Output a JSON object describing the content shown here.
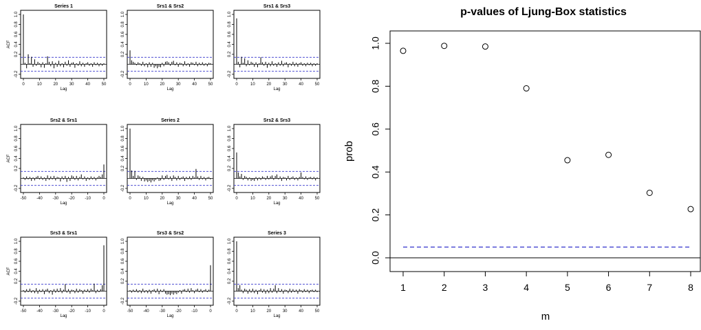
{
  "chart_data": [
    {
      "type": "bar",
      "panel": "acf-grid",
      "title": "Series 1",
      "ylabel": "ACF",
      "xlabel": "Lag",
      "ylim": [
        -0.2,
        1.0
      ],
      "xlim": [
        0,
        50
      ],
      "x_ticks": [
        "0",
        "10",
        "20",
        "30",
        "40",
        "50"
      ],
      "y_ticks": [
        "-0.2",
        "0.2",
        "0.4",
        "0.6",
        "0.8",
        "1.0"
      ],
      "ci": 0.14,
      "lags": [
        0,
        1,
        2,
        3,
        4,
        5,
        6,
        7,
        8,
        9,
        10,
        11,
        12,
        13,
        14,
        15,
        16,
        17,
        18,
        19,
        20,
        21,
        22,
        23,
        24,
        25,
        26,
        27,
        28,
        29,
        30,
        31,
        32,
        33,
        34,
        35,
        36,
        37,
        38,
        39,
        40,
        41,
        42,
        43,
        44,
        45,
        46,
        47,
        48,
        49,
        50
      ],
      "values": [
        1.0,
        0.03,
        -0.08,
        0.2,
        0.02,
        0.15,
        -0.05,
        0.1,
        -0.03,
        0.05,
        0.02,
        -0.06,
        0.04,
        -0.07,
        0.02,
        0.16,
        0.05,
        -0.04,
        0.06,
        -0.08,
        0.03,
        -0.05,
        0.07,
        -0.04,
        0.02,
        -0.06,
        0.05,
        -0.03,
        0.08,
        -0.05,
        0.03,
        0.04,
        -0.07,
        0.02,
        -0.03,
        0.06,
        -0.04,
        0.03,
        -0.05,
        0.02,
        0.04,
        -0.03,
        0.02,
        -0.05,
        0.04,
        -0.02,
        0.03,
        -0.04,
        0.02,
        -0.03,
        0.02
      ]
    },
    {
      "type": "bar",
      "panel": "acf-grid",
      "title": "Srs1 & Srs2",
      "xlabel": "Lag",
      "ylim": [
        -0.2,
        1.0
      ],
      "xlim": [
        0,
        50
      ],
      "x_ticks": [
        "0",
        "10",
        "20",
        "30",
        "40",
        "50"
      ],
      "y_ticks": [
        "-0.2",
        "0.2",
        "0.4",
        "0.6",
        "0.8",
        "1.0"
      ],
      "ci": 0.14,
      "lags": [
        0,
        1,
        2,
        3,
        4,
        5,
        6,
        7,
        8,
        9,
        10,
        11,
        12,
        13,
        14,
        15,
        16,
        17,
        18,
        19,
        20,
        21,
        22,
        23,
        24,
        25,
        26,
        27,
        28,
        29,
        30,
        31,
        32,
        33,
        34,
        35,
        36,
        37,
        38,
        39,
        40,
        41,
        42,
        43,
        44,
        45,
        46,
        47,
        48,
        49,
        50
      ],
      "values": [
        0.28,
        0.08,
        0.05,
        0.03,
        -0.02,
        0.04,
        0.02,
        -0.03,
        0.05,
        -0.04,
        0.02,
        -0.06,
        0.04,
        -0.05,
        0.03,
        -0.07,
        -0.04,
        -0.08,
        -0.05,
        -0.06,
        0.03,
        -0.04,
        0.05,
        0.06,
        0.04,
        -0.03,
        0.05,
        0.07,
        -0.02,
        0.04,
        -0.05,
        0.03,
        0.02,
        -0.04,
        0.06,
        -0.03,
        0.02,
        -0.05,
        0.04,
        0.03,
        -0.02,
        0.05,
        -0.04,
        0.03,
        -0.02,
        0.04,
        -0.03,
        0.02,
        -0.04,
        0.03,
        0.02
      ]
    },
    {
      "type": "bar",
      "panel": "acf-grid",
      "title": "Srs1 & Srs3",
      "xlabel": "Lag",
      "ylim": [
        -0.2,
        1.0
      ],
      "xlim": [
        0,
        50
      ],
      "x_ticks": [
        "0",
        "10",
        "20",
        "30",
        "40",
        "50"
      ],
      "y_ticks": [
        "-0.2",
        "0.2",
        "0.4",
        "0.6",
        "0.8",
        "1.0"
      ],
      "ci": 0.14,
      "lags": [
        0,
        1,
        2,
        3,
        4,
        5,
        6,
        7,
        8,
        9,
        10,
        11,
        12,
        13,
        14,
        15,
        16,
        17,
        18,
        19,
        20,
        21,
        22,
        23,
        24,
        25,
        26,
        27,
        28,
        29,
        30,
        31,
        32,
        33,
        34,
        35,
        36,
        37,
        38,
        39,
        40,
        41,
        42,
        43,
        44,
        45,
        46,
        47,
        48,
        49,
        50
      ],
      "values": [
        0.92,
        0.05,
        -0.06,
        0.15,
        0.03,
        0.12,
        -0.04,
        0.08,
        -0.02,
        0.05,
        0.03,
        -0.05,
        0.04,
        -0.06,
        0.02,
        0.14,
        0.04,
        -0.03,
        0.05,
        -0.07,
        0.03,
        -0.04,
        0.06,
        -0.03,
        0.02,
        -0.05,
        0.04,
        -0.03,
        0.07,
        -0.04,
        0.03,
        0.04,
        -0.06,
        0.02,
        -0.03,
        0.05,
        -0.04,
        0.03,
        -0.05,
        0.02,
        0.04,
        -0.03,
        0.02,
        -0.04,
        0.03,
        -0.02,
        0.03,
        -0.04,
        0.02,
        -0.03,
        0.02
      ]
    },
    {
      "type": "bar",
      "panel": "acf-grid",
      "title": "Srs2 & Srs1",
      "ylabel": "ACF",
      "xlabel": "Lag",
      "ylim": [
        -0.2,
        1.0
      ],
      "xlim": [
        -50,
        0
      ],
      "x_ticks": [
        "-50",
        "-40",
        "-30",
        "-20",
        "-10",
        "0"
      ],
      "y_ticks": [
        "-0.2",
        "0.2",
        "0.4",
        "0.6",
        "0.8",
        "1.0"
      ],
      "ci": 0.14,
      "lags": [
        -50,
        -49,
        -48,
        -47,
        -46,
        -45,
        -44,
        -43,
        -42,
        -41,
        -40,
        -39,
        -38,
        -37,
        -36,
        -35,
        -34,
        -33,
        -32,
        -31,
        -30,
        -29,
        -28,
        -27,
        -26,
        -25,
        -24,
        -23,
        -22,
        -21,
        -20,
        -19,
        -18,
        -17,
        -16,
        -15,
        -14,
        -13,
        -12,
        -11,
        -10,
        -9,
        -8,
        -7,
        -6,
        -5,
        -4,
        -3,
        -2,
        -1,
        0
      ],
      "values": [
        0.02,
        -0.03,
        0.04,
        -0.02,
        0.03,
        -0.05,
        0.02,
        -0.04,
        0.03,
        0.05,
        -0.02,
        0.04,
        -0.03,
        0.02,
        -0.05,
        0.06,
        -0.03,
        0.04,
        -0.02,
        0.05,
        -0.04,
        0.03,
        0.02,
        -0.06,
        0.04,
        -0.02,
        0.05,
        -0.07,
        0.03,
        -0.05,
        0.06,
        0.04,
        -0.03,
        0.05,
        -0.04,
        0.03,
        0.08,
        -0.02,
        0.04,
        -0.05,
        0.02,
        -0.03,
        0.04,
        -0.02,
        0.03,
        -0.04,
        0.02,
        0.05,
        0.03,
        0.08,
        0.28
      ]
    },
    {
      "type": "bar",
      "panel": "acf-grid",
      "title": "Series 2",
      "xlabel": "Lag",
      "ylim": [
        -0.2,
        1.0
      ],
      "xlim": [
        0,
        50
      ],
      "x_ticks": [
        "0",
        "10",
        "20",
        "30",
        "40",
        "50"
      ],
      "y_ticks": [
        "-0.2",
        "0.2",
        "0.4",
        "0.6",
        "0.8",
        "1.0"
      ],
      "ci": 0.14,
      "lags": [
        0,
        1,
        2,
        3,
        4,
        5,
        6,
        7,
        8,
        9,
        10,
        11,
        12,
        13,
        14,
        15,
        16,
        17,
        18,
        19,
        20,
        21,
        22,
        23,
        24,
        25,
        26,
        27,
        28,
        29,
        30,
        31,
        32,
        33,
        34,
        35,
        36,
        37,
        38,
        39,
        40,
        41,
        42,
        43,
        44,
        45,
        46,
        47,
        48,
        49,
        50
      ],
      "values": [
        1.0,
        0.16,
        0.05,
        0.15,
        -0.03,
        0.06,
        0.04,
        -0.05,
        0.03,
        -0.06,
        -0.04,
        -0.07,
        -0.05,
        -0.08,
        -0.04,
        -0.06,
        -0.03,
        0.02,
        -0.05,
        -0.04,
        0.06,
        -0.03,
        0.05,
        0.07,
        -0.02,
        0.04,
        -0.05,
        0.06,
        0.03,
        -0.04,
        0.05,
        -0.03,
        0.02,
        0.04,
        -0.05,
        0.03,
        -0.02,
        0.04,
        -0.03,
        0.05,
        0.02,
        0.19,
        0.04,
        -0.03,
        0.05,
        -0.02,
        0.03,
        -0.04,
        0.02,
        0.03,
        -0.02
      ]
    },
    {
      "type": "bar",
      "panel": "acf-grid",
      "title": "Srs2 & Srs3",
      "xlabel": "Lag",
      "ylim": [
        -0.2,
        1.0
      ],
      "xlim": [
        0,
        50
      ],
      "x_ticks": [
        "0",
        "10",
        "20",
        "30",
        "40",
        "50"
      ],
      "y_ticks": [
        "-0.2",
        "0.2",
        "0.4",
        "0.6",
        "0.8",
        "1.0"
      ],
      "ci": 0.14,
      "lags": [
        0,
        1,
        2,
        3,
        4,
        5,
        6,
        7,
        8,
        9,
        10,
        11,
        12,
        13,
        14,
        15,
        16,
        17,
        18,
        19,
        20,
        21,
        22,
        23,
        24,
        25,
        26,
        27,
        28,
        29,
        30,
        31,
        32,
        33,
        34,
        35,
        36,
        37,
        38,
        39,
        40,
        41,
        42,
        43,
        44,
        45,
        46,
        47,
        48,
        49,
        50
      ],
      "values": [
        0.52,
        0.12,
        0.04,
        0.09,
        -0.03,
        0.05,
        0.03,
        -0.04,
        0.02,
        -0.05,
        -0.03,
        -0.05,
        0.03,
        -0.04,
        0.02,
        -0.03,
        0.04,
        0.02,
        -0.03,
        0.05,
        -0.02,
        0.04,
        0.06,
        -0.03,
        0.05,
        0.08,
        -0.02,
        0.04,
        -0.05,
        0.03,
        0.02,
        -0.04,
        0.05,
        -0.03,
        0.02,
        0.04,
        -0.03,
        0.02,
        -0.04,
        0.03,
        0.12,
        0.03,
        -0.02,
        0.04,
        -0.03,
        0.02,
        0.03,
        -0.02,
        0.03,
        -0.04,
        0.02
      ]
    },
    {
      "type": "bar",
      "panel": "acf-grid",
      "title": "Srs3 & Srs1",
      "ylabel": "ACF",
      "xlabel": "Lag",
      "ylim": [
        -0.2,
        1.0
      ],
      "xlim": [
        -50,
        0
      ],
      "x_ticks": [
        "-50",
        "-40",
        "-30",
        "-20",
        "-10",
        "0"
      ],
      "y_ticks": [
        "-0.2",
        "0.2",
        "0.4",
        "0.6",
        "0.8",
        "1.0"
      ],
      "ci": 0.14,
      "lags": [
        -50,
        -49,
        -48,
        -47,
        -46,
        -45,
        -44,
        -43,
        -42,
        -41,
        -40,
        -39,
        -38,
        -37,
        -36,
        -35,
        -34,
        -33,
        -32,
        -31,
        -30,
        -29,
        -28,
        -27,
        -26,
        -25,
        -24,
        -23,
        -22,
        -21,
        -20,
        -19,
        -18,
        -17,
        -16,
        -15,
        -14,
        -13,
        -12,
        -11,
        -10,
        -9,
        -8,
        -7,
        -6,
        -5,
        -4,
        -3,
        -2,
        -1,
        0
      ],
      "values": [
        0.02,
        -0.03,
        0.04,
        -0.02,
        0.05,
        -0.03,
        0.02,
        -0.04,
        0.06,
        -0.05,
        0.03,
        -0.02,
        0.04,
        -0.06,
        0.03,
        0.05,
        -0.04,
        0.02,
        -0.07,
        0.04,
        -0.03,
        0.05,
        -0.02,
        0.06,
        -0.04,
        0.03,
        0.14,
        -0.03,
        0.04,
        -0.05,
        0.03,
        0.02,
        -0.04,
        0.05,
        -0.03,
        0.04,
        0.02,
        -0.05,
        0.03,
        -0.02,
        0.04,
        -0.03,
        0.05,
        0.02,
        0.15,
        -0.04,
        0.03,
        -0.02,
        0.04,
        0.12,
        0.92
      ]
    },
    {
      "type": "bar",
      "panel": "acf-grid",
      "title": "Srs3 & Srs2",
      "xlabel": "Lag",
      "ylim": [
        -0.2,
        1.0
      ],
      "xlim": [
        -50,
        0
      ],
      "x_ticks": [
        "-50",
        "-40",
        "-30",
        "-20",
        "-10",
        "0"
      ],
      "y_ticks": [
        "-0.2",
        "0.2",
        "0.4",
        "0.6",
        "0.8",
        "1.0"
      ],
      "ci": 0.14,
      "lags": [
        -50,
        -49,
        -48,
        -47,
        -46,
        -45,
        -44,
        -43,
        -42,
        -41,
        -40,
        -39,
        -38,
        -37,
        -36,
        -35,
        -34,
        -33,
        -32,
        -31,
        -30,
        -29,
        -28,
        -27,
        -26,
        -25,
        -24,
        -23,
        -22,
        -21,
        -20,
        -19,
        -18,
        -17,
        -16,
        -15,
        -14,
        -13,
        -12,
        -11,
        -10,
        -9,
        -8,
        -7,
        -6,
        -5,
        -4,
        -3,
        -2,
        -1,
        0
      ],
      "values": [
        0.02,
        -0.03,
        0.03,
        -0.02,
        0.04,
        -0.03,
        0.02,
        -0.04,
        0.05,
        -0.03,
        0.02,
        -0.04,
        0.03,
        -0.05,
        0.02,
        0.04,
        -0.03,
        0.05,
        -0.06,
        0.03,
        -0.02,
        0.04,
        -0.05,
        -0.07,
        -0.06,
        -0.08,
        -0.05,
        -0.07,
        -0.04,
        -0.06,
        -0.03,
        0.02,
        -0.05,
        0.03,
        0.04,
        -0.02,
        0.05,
        -0.03,
        0.06,
        0.02,
        -0.04,
        0.03,
        0.05,
        -0.02,
        0.04,
        -0.03,
        0.02,
        0.04,
        -0.02,
        0.03,
        0.52
      ]
    },
    {
      "type": "bar",
      "panel": "acf-grid",
      "title": "Series 3",
      "xlabel": "Lag",
      "ylim": [
        -0.2,
        1.0
      ],
      "xlim": [
        0,
        50
      ],
      "x_ticks": [
        "0",
        "10",
        "20",
        "30",
        "40",
        "50"
      ],
      "y_ticks": [
        "-0.2",
        "0.2",
        "0.4",
        "0.6",
        "0.8",
        "1.0"
      ],
      "ci": 0.14,
      "lags": [
        0,
        1,
        2,
        3,
        4,
        5,
        6,
        7,
        8,
        9,
        10,
        11,
        12,
        13,
        14,
        15,
        16,
        17,
        18,
        19,
        20,
        21,
        22,
        23,
        24,
        25,
        26,
        27,
        28,
        29,
        30,
        31,
        32,
        33,
        34,
        35,
        36,
        37,
        38,
        39,
        40,
        41,
        42,
        43,
        44,
        45,
        46,
        47,
        48,
        49,
        50
      ],
      "values": [
        1.0,
        0.06,
        0.12,
        0.03,
        -0.04,
        0.05,
        0.03,
        -0.05,
        0.04,
        -0.03,
        0.05,
        -0.04,
        0.03,
        -0.06,
        0.02,
        0.05,
        -0.03,
        0.04,
        -0.05,
        0.03,
        -0.04,
        0.06,
        -0.03,
        0.05,
        0.12,
        -0.04,
        0.06,
        -0.02,
        0.04,
        -0.05,
        0.03,
        0.02,
        -0.04,
        0.05,
        -0.03,
        0.04,
        -0.02,
        0.03,
        -0.05,
        0.04,
        0.02,
        -0.03,
        0.04,
        -0.02,
        0.03,
        -0.04,
        0.02,
        0.03,
        -0.02,
        0.03,
        -0.02
      ]
    },
    {
      "type": "scatter",
      "panel": "ljung-box",
      "title": "p-values of Ljung-Box statistics",
      "xlabel": "m",
      "ylabel": "prob",
      "x": [
        1,
        2,
        3,
        4,
        5,
        6,
        7,
        8
      ],
      "y": [
        0.965,
        0.988,
        0.985,
        0.79,
        0.455,
        0.48,
        0.303,
        0.227
      ],
      "xlim": [
        1,
        8
      ],
      "ylim": [
        0.0,
        1.0
      ],
      "x_ticks": [
        "1",
        "2",
        "3",
        "4",
        "5",
        "6",
        "7",
        "8"
      ],
      "y_ticks": [
        "0.0",
        "0.2",
        "0.4",
        "0.6",
        "0.8",
        "1.0"
      ],
      "reference_line": 0.05,
      "reference_color": "#3333cc"
    }
  ]
}
